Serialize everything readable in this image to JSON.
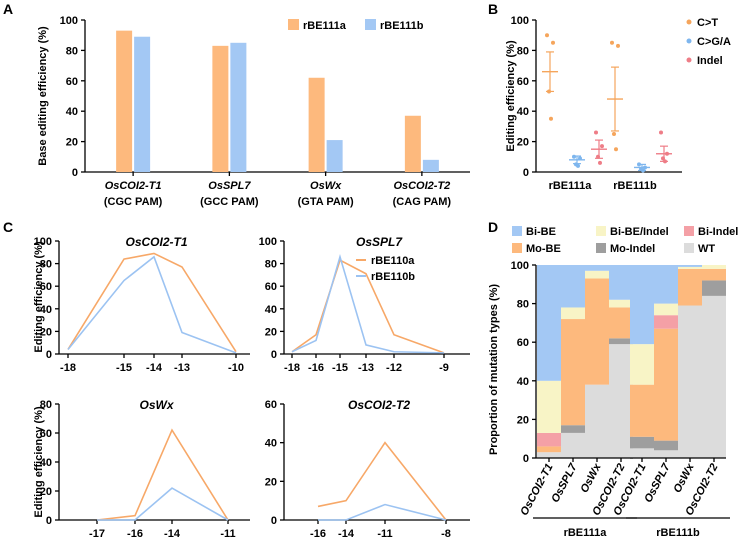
{
  "colors": {
    "orange": "#FDB97D",
    "blue": "#A3C8F4",
    "red": "#F4A0A6",
    "line_orange": "#F7A868",
    "line_blue": "#9CC3F2",
    "dot_orange": "#F5A55C",
    "dot_blue": "#7EB6EE",
    "dot_red": "#EE7D87",
    "d_bibe": "#A3C8F4",
    "d_bibeindel": "#F8F4C6",
    "d_biindel": "#F4A0A6",
    "d_mobe": "#FDB97D",
    "d_moindel": "#9E9E9E",
    "d_wt": "#DCDCDC"
  },
  "panels": {
    "a": {
      "letter": "A"
    },
    "b": {
      "letter": "B"
    },
    "c": {
      "letter": "C"
    },
    "d": {
      "letter": "D"
    }
  },
  "chart_data": [
    {
      "id": "A",
      "type": "bar",
      "ylabel": "Base editing efficiency (%)",
      "ylim": [
        0,
        100
      ],
      "yticks": [
        "0",
        "20",
        "40",
        "60",
        "80",
        "100"
      ],
      "categories": [
        "OsCOI2-T1",
        "OsSPL7",
        "OsWx",
        "OsCOI2-T2"
      ],
      "categories_pam": [
        "(CGC PAM)",
        "(GCC PAM)",
        "(GTA PAM)",
        "(CAG PAM)"
      ],
      "series": [
        {
          "name": "rBE111a",
          "values": [
            93,
            83,
            62,
            37
          ]
        },
        {
          "name": "rBE111b",
          "values": [
            89,
            85,
            21,
            8
          ]
        }
      ],
      "legend": "top-right"
    },
    {
      "id": "B",
      "type": "scatter",
      "ylabel": "Editing efficiency (%)",
      "ylim": [
        0,
        100
      ],
      "yticks": [
        "0",
        "20",
        "40",
        "60",
        "80",
        "100"
      ],
      "groups": [
        "rBE111a",
        "rBE111b"
      ],
      "series": [
        {
          "name": "C>T",
          "points": [
            [
              90,
              85,
              53,
              35
            ],
            [
              85,
              83,
              25,
              15
            ]
          ],
          "mean": [
            66,
            48
          ],
          "err": [
            13,
            21
          ]
        },
        {
          "name": "C>G/A",
          "points": [
            [
              10,
              9,
              5,
              4
            ],
            [
              5,
              3,
              2,
              1
            ]
          ],
          "mean": [
            8,
            3
          ],
          "err": [
            2.5,
            2
          ]
        },
        {
          "name": "Indel",
          "points": [
            [
              26,
              17,
              10,
              6
            ],
            [
              26,
              12,
              9,
              7
            ]
          ],
          "mean": [
            15,
            12
          ],
          "err": [
            6,
            5
          ]
        }
      ],
      "legend": "top-right"
    },
    {
      "id": "C",
      "type": "line",
      "ylabel": "Editing efficiency (%)",
      "legend_series": [
        "rBE110a",
        "rBE110b"
      ],
      "subplots": [
        {
          "title": "OsCOI2-T1",
          "x": [
            "-18",
            "-15",
            "-14",
            "-13",
            "-10"
          ],
          "ylim": [
            0,
            100
          ],
          "yticks": [
            "0",
            "20",
            "40",
            "60",
            "80",
            "100"
          ],
          "series": [
            {
              "name": "rBE110a",
              "values": [
                4,
                84,
                89,
                77,
                2
              ]
            },
            {
              "name": "rBE110b",
              "values": [
                4,
                65,
                86,
                19,
                1
              ]
            }
          ]
        },
        {
          "title": "OsSPL7",
          "x": [
            "-18",
            "-16",
            "-15",
            "-13",
            "-12",
            "-9"
          ],
          "ylim": [
            0,
            100
          ],
          "yticks": [
            "0",
            "20",
            "40",
            "60",
            "80",
            "100"
          ],
          "series": [
            {
              "name": "rBE110a",
              "values": [
                2,
                17,
                83,
                71,
                17,
                1
              ]
            },
            {
              "name": "rBE110b",
              "values": [
                2,
                12,
                86,
                8,
                2,
                1
              ]
            }
          ]
        },
        {
          "title": "OsWx",
          "x": [
            "-17",
            "-16",
            "-14",
            "-11"
          ],
          "ylim": [
            0,
            80
          ],
          "yticks": [
            "0",
            "20",
            "40",
            "60",
            "80"
          ],
          "series": [
            {
              "name": "rBE110a",
              "values": [
                0,
                3,
                62,
                0
              ]
            },
            {
              "name": "rBE110b",
              "values": [
                0,
                0,
                22,
                0
              ]
            }
          ]
        },
        {
          "title": "OsCOI2-T2",
          "x": [
            "-16",
            "-14",
            "-11",
            "-8"
          ],
          "ylim": [
            0,
            60
          ],
          "yticks": [
            "0",
            "20",
            "40",
            "60"
          ],
          "series": [
            {
              "name": "rBE110a",
              "values": [
                7,
                10,
                40,
                0
              ]
            },
            {
              "name": "rBE110b",
              "values": [
                0,
                0,
                8,
                0
              ]
            }
          ]
        }
      ]
    },
    {
      "id": "D",
      "type": "bar",
      "stacked": true,
      "ylabel": "Proportion of mutation types (%)",
      "ylim": [
        0,
        100
      ],
      "yticks": [
        "0",
        "20",
        "40",
        "60",
        "80",
        "100"
      ],
      "legend_labels": [
        "Bi-BE",
        "Bi-BE/Indel",
        "Bi-Indel",
        "Mo-BE",
        "Mo-Indel",
        "WT"
      ],
      "groups": [
        {
          "name": "rBE111a",
          "categories": [
            "OsCOI2-T1",
            "OsSPL7",
            "OsWx",
            "OsCOI2-T2"
          ],
          "stacks": [
            {
              "WT": 3,
              "Mo-Indel": 0,
              "Mo-BE": 3,
              "Bi-Indel": 7,
              "Bi-BE/Indel": 27,
              "Bi-BE": 60
            },
            {
              "WT": 13,
              "Mo-Indel": 4,
              "Mo-BE": 55,
              "Bi-Indel": 0,
              "Bi-BE/Indel": 6,
              "Bi-BE": 22
            },
            {
              "WT": 38,
              "Mo-Indel": 0,
              "Mo-BE": 55,
              "Bi-Indel": 0,
              "Bi-BE/Indel": 4,
              "Bi-BE": 3
            },
            {
              "WT": 59,
              "Mo-Indel": 3,
              "Mo-BE": 16,
              "Bi-Indel": 0,
              "Bi-BE/Indel": 4,
              "Bi-BE": 18
            }
          ]
        },
        {
          "name": "rBE111b",
          "categories": [
            "OsCOI2-T1",
            "OsSPL7",
            "OsWx",
            "OsCOI2-T2"
          ],
          "stacks": [
            {
              "WT": 5,
              "Mo-Indel": 6,
              "Mo-BE": 27,
              "Bi-Indel": 0,
              "Bi-BE/Indel": 21,
              "Bi-BE": 41
            },
            {
              "WT": 4,
              "Mo-Indel": 5,
              "Mo-BE": 58,
              "Bi-Indel": 7,
              "Bi-BE/Indel": 6,
              "Bi-BE": 20
            },
            {
              "WT": 79,
              "Mo-Indel": 0,
              "Mo-BE": 19,
              "Bi-Indel": 0,
              "Bi-BE/Indel": 1,
              "Bi-BE": 1
            },
            {
              "WT": 84,
              "Mo-Indel": 8,
              "Mo-BE": 6,
              "Bi-Indel": 0,
              "Bi-BE/Indel": 2,
              "Bi-BE": 0
            }
          ]
        }
      ],
      "legend": "top"
    }
  ]
}
